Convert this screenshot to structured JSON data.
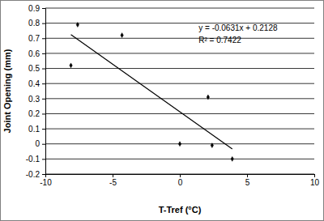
{
  "chart_data": {
    "type": "scatter",
    "x_label": "T-Tref (°C)",
    "y_label": "Joint Opening (mm)",
    "x": [
      -8.1,
      -7.6,
      -4.3,
      0,
      2.1,
      2.4,
      3.9
    ],
    "values": [
      0.52,
      0.79,
      0.72,
      0,
      0.31,
      -0.01,
      -0.1
    ],
    "color": "#000000",
    "marker": "diamond",
    "trendline": {
      "x": [
        -8.1,
        3.9
      ],
      "values": [
        0.7239,
        -0.0333
      ],
      "color": "#000000"
    },
    "annotations": [
      "y = -0.0631x + 0.2128",
      "R² = 0.7422"
    ],
    "xlim": [
      -10,
      10
    ],
    "xticks": [
      -10,
      -5,
      0,
      5,
      10
    ],
    "ylim": [
      -0.2,
      0.9
    ],
    "yticks": [
      -0.2,
      -0.1,
      0,
      0.1,
      0.2,
      0.3,
      0.4,
      0.5,
      0.6,
      0.7,
      0.8,
      0.9
    ],
    "grid": true
  }
}
